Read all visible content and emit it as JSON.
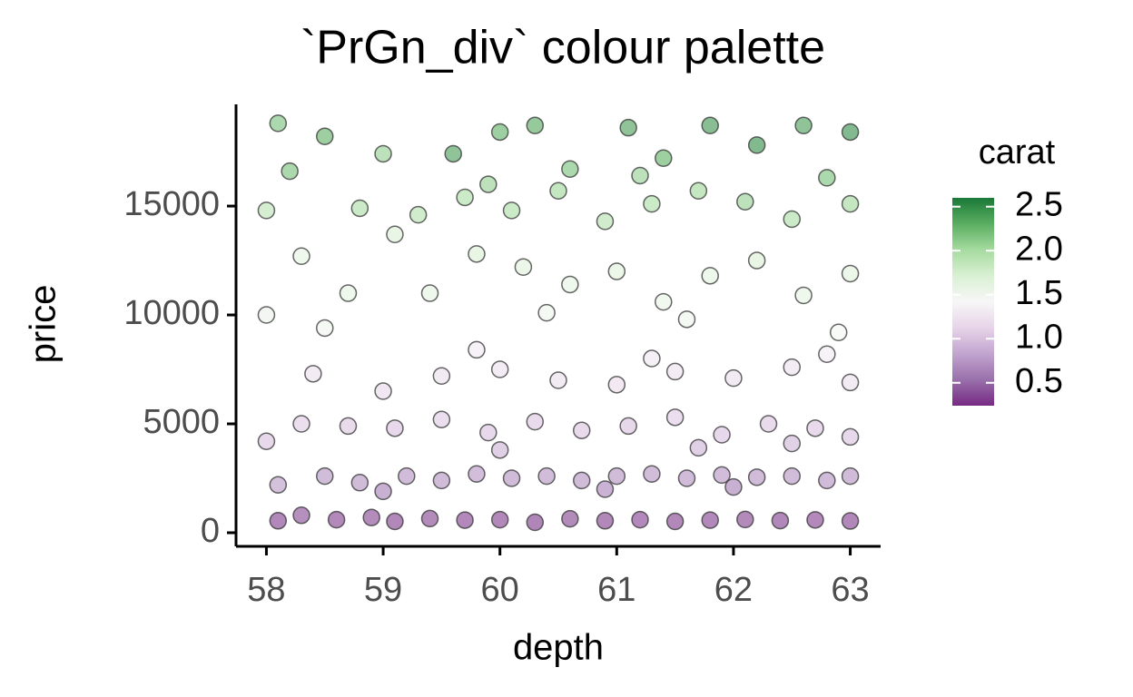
{
  "chart_data": {
    "type": "scatter",
    "title": "`PrGn_div` colour palette",
    "x_label": "depth",
    "y_label": "price",
    "xlim": [
      57.74,
      63.26
    ],
    "ylim": [
      -625,
      19670
    ],
    "xticks": [
      58,
      59,
      60,
      61,
      62,
      63
    ],
    "yticks": [
      0,
      5000,
      10000,
      15000
    ],
    "x": [
      58.1,
      58.3,
      58.6,
      58.9,
      59.1,
      59.4,
      59.7,
      60.0,
      60.3,
      60.6,
      60.9,
      61.2,
      61.5,
      61.8,
      62.1,
      62.4,
      62.7,
      63.0,
      58.1,
      58.5,
      58.8,
      59.2,
      59.5,
      59.8,
      60.1,
      60.4,
      60.7,
      61.0,
      61.3,
      61.6,
      61.9,
      62.2,
      62.5,
      62.8,
      63.0,
      59.0,
      60.9,
      62.0,
      58.0,
      58.3,
      58.7,
      59.1,
      59.5,
      59.9,
      60.3,
      60.7,
      61.1,
      61.5,
      61.9,
      62.3,
      62.7,
      63.0,
      60.0,
      61.7,
      62.5,
      58.4,
      59.0,
      59.5,
      60.0,
      60.5,
      61.0,
      61.5,
      62.0,
      62.5,
      63.0,
      59.8,
      61.3,
      62.8,
      58.0,
      58.3,
      58.7,
      59.1,
      59.4,
      59.8,
      60.2,
      60.6,
      61.0,
      61.4,
      61.8,
      62.2,
      62.6,
      63.0,
      58.5,
      60.4,
      61.6,
      62.9,
      58.0,
      58.8,
      59.3,
      59.7,
      60.1,
      60.5,
      60.9,
      61.3,
      61.7,
      62.1,
      62.5,
      63.0,
      59.9,
      61.2,
      62.8,
      58.1,
      58.5,
      59.0,
      59.6,
      60.0,
      60.3,
      60.6,
      61.1,
      61.4,
      61.8,
      62.2,
      62.6,
      63.0,
      58.2
    ],
    "values": [
      550,
      800,
      600,
      700,
      520,
      650,
      580,
      600,
      480,
      640,
      550,
      600,
      520,
      580,
      610,
      560,
      590,
      540,
      2200,
      2600,
      2300,
      2600,
      2400,
      2700,
      2500,
      2600,
      2400,
      2600,
      2700,
      2500,
      2650,
      2550,
      2600,
      2400,
      2600,
      1900,
      2000,
      2100,
      4200,
      5000,
      4900,
      4800,
      5200,
      4600,
      5100,
      4700,
      4900,
      5300,
      4500,
      5000,
      4800,
      4400,
      3800,
      3900,
      4100,
      7300,
      6500,
      7200,
      7500,
      7000,
      6800,
      7400,
      7100,
      7600,
      6900,
      8400,
      8000,
      8200,
      10000,
      12700,
      11000,
      13700,
      11000,
      12800,
      12200,
      11400,
      12000,
      10600,
      11800,
      12500,
      10900,
      11900,
      9400,
      10100,
      9800,
      9200,
      14800,
      14900,
      14600,
      15400,
      14800,
      15700,
      14300,
      15100,
      15700,
      15200,
      14400,
      15100,
      16000,
      16400,
      16300,
      18800,
      18200,
      17400,
      17400,
      18400,
      18700,
      16700,
      18600,
      17200,
      18700,
      17800,
      18700,
      18400,
      16600
    ],
    "carat": [
      0.3,
      0.35,
      0.31,
      0.33,
      0.3,
      0.32,
      0.31,
      0.3,
      0.28,
      0.32,
      0.3,
      0.31,
      0.3,
      0.31,
      0.32,
      0.3,
      0.31,
      0.3,
      0.75,
      0.72,
      0.7,
      0.72,
      0.7,
      0.73,
      0.71,
      0.72,
      0.7,
      0.71,
      0.72,
      0.7,
      0.72,
      0.71,
      0.72,
      0.7,
      0.71,
      0.6,
      0.62,
      0.6,
      1.0,
      1.05,
      1.02,
      1.0,
      1.05,
      1.0,
      1.02,
      1.01,
      1.0,
      1.05,
      1.0,
      1.02,
      1.01,
      1.0,
      0.9,
      0.9,
      0.92,
      1.2,
      1.15,
      1.2,
      1.22,
      1.2,
      1.18,
      1.22,
      1.2,
      1.23,
      1.2,
      1.3,
      1.28,
      1.3,
      1.55,
      1.6,
      1.6,
      1.7,
      1.6,
      1.7,
      1.65,
      1.6,
      1.65,
      1.58,
      1.62,
      1.7,
      1.6,
      1.65,
      1.5,
      1.52,
      1.5,
      1.48,
      1.9,
      2.0,
      1.95,
      2.0,
      2.0,
      2.05,
      1.95,
      2.0,
      2.05,
      2.1,
      2.0,
      2.05,
      2.1,
      2.1,
      2.2,
      2.2,
      2.3,
      2.1,
      2.4,
      2.3,
      2.35,
      2.2,
      2.4,
      2.3,
      2.45,
      2.5,
      2.4,
      2.5,
      2.2
    ],
    "colorbar": {
      "title": "carat",
      "lim": [
        0.24,
        2.6
      ],
      "ticks": [
        0.5,
        {
          "value": 1,
          "label": "1.0"
        },
        1.5,
        {
          "value": 2,
          "label": "2.0"
        },
        2.5
      ],
      "palette": [
        "#762a83",
        "#9970ab",
        "#c2a5cf",
        "#e7d4e8",
        "#f7f7f7",
        "#d9f0d3",
        "#a6dba0",
        "#5aae61",
        "#1b7837"
      ]
    }
  }
}
